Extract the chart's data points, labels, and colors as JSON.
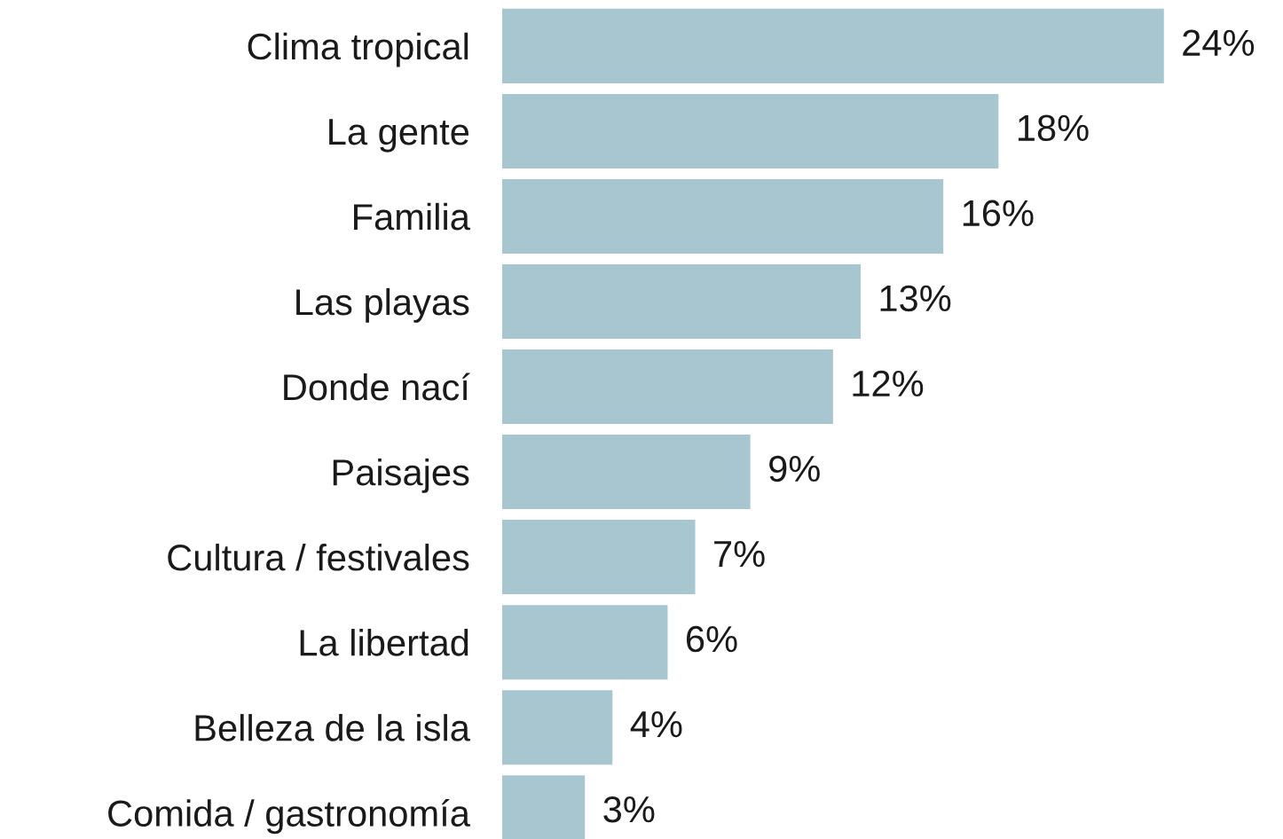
{
  "chart_data": {
    "type": "bar",
    "orientation": "horizontal",
    "categories": [
      "Clima tropical",
      "La gente",
      "Familia",
      "Las playas",
      "Donde nací",
      "Paisajes",
      "Cultura / festivales",
      "La libertad",
      "Belleza de la isla",
      "Comida / gastronomía"
    ],
    "values": [
      24,
      18,
      16,
      13,
      12,
      9,
      7,
      6,
      4,
      3
    ],
    "value_labels": [
      "24%",
      "18%",
      "16%",
      "13%",
      "12%",
      "9%",
      "7%",
      "6%",
      "4%",
      "3%"
    ],
    "color": "#a7c6cf",
    "tick_labels": "y"
  }
}
